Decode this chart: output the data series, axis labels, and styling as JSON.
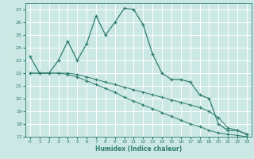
{
  "xlabel": "Humidex (Indice chaleur)",
  "bg_color": "#cce8e4",
  "grid_color": "#ffffff",
  "line_color": "#2e7d6e",
  "ylim": [
    17,
    27.5
  ],
  "xlim": [
    -0.5,
    23.5
  ],
  "yticks": [
    17,
    18,
    19,
    20,
    21,
    22,
    23,
    24,
    25,
    26,
    27
  ],
  "xticks": [
    0,
    1,
    2,
    3,
    4,
    5,
    6,
    7,
    8,
    9,
    10,
    11,
    12,
    13,
    14,
    15,
    16,
    17,
    18,
    19,
    20,
    21,
    22,
    23
  ],
  "line1_x": [
    0,
    1,
    2,
    3,
    4,
    5,
    6,
    7,
    8,
    9,
    10,
    11,
    12,
    13,
    14,
    15,
    16,
    17,
    18,
    19,
    20,
    21,
    22,
    23
  ],
  "line1_y": [
    23.3,
    22.0,
    22.0,
    23.0,
    24.5,
    23.0,
    24.3,
    26.5,
    25.0,
    26.0,
    27.1,
    27.0,
    25.8,
    23.5,
    22.0,
    21.5,
    21.5,
    21.3,
    20.3,
    20.0,
    18.0,
    17.5,
    17.5,
    17.2
  ],
  "line2_x": [
    0,
    1,
    2,
    3,
    4,
    5,
    6,
    7,
    8,
    9,
    10,
    11,
    12,
    13,
    14,
    15,
    16,
    17,
    18,
    19,
    20,
    21,
    22,
    23
  ],
  "line2_y": [
    22.0,
    22.0,
    22.0,
    22.0,
    22.0,
    21.9,
    21.7,
    21.5,
    21.3,
    21.1,
    20.9,
    20.7,
    20.5,
    20.3,
    20.1,
    19.9,
    19.7,
    19.5,
    19.3,
    19.0,
    18.5,
    17.7,
    17.5,
    17.2
  ],
  "line3_x": [
    0,
    1,
    2,
    3,
    4,
    5,
    6,
    7,
    8,
    9,
    10,
    11,
    12,
    13,
    14,
    15,
    16,
    17,
    18,
    19,
    20,
    21,
    22,
    23
  ],
  "line3_y": [
    22.0,
    22.0,
    22.0,
    22.0,
    21.9,
    21.7,
    21.4,
    21.1,
    20.8,
    20.5,
    20.1,
    19.8,
    19.5,
    19.2,
    18.9,
    18.6,
    18.3,
    18.0,
    17.8,
    17.5,
    17.3,
    17.2,
    17.1,
    17.0
  ]
}
